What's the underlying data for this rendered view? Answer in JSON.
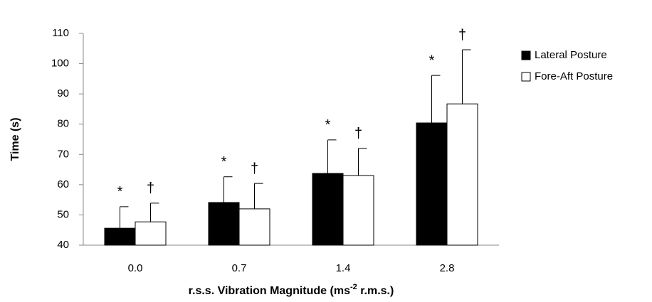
{
  "chart_data": {
    "type": "bar",
    "y_label": "Time (s)",
    "x_label": [
      "r.s.s. Vibration Magnitude (ms",
      "-2",
      " r.m.s.)"
    ],
    "categories": [
      "0.0",
      "0.7",
      "1.4",
      "2.8"
    ],
    "series": [
      {
        "name": "Lateral Posture",
        "color": "#000000",
        "values": [
          45.6,
          54.1,
          63.7,
          80.4
        ],
        "errors": [
          7.1,
          8.5,
          11.1,
          15.7
        ],
        "annotations": [
          "*",
          "*",
          "*",
          "*"
        ]
      },
      {
        "name": "Fore-Aft Posture",
        "color": "#ffffff",
        "values": [
          47.7,
          52,
          63,
          86.7
        ],
        "errors": [
          6.2,
          8.4,
          9,
          17.9
        ],
        "annotations": [
          "†",
          "†",
          "†",
          "†"
        ]
      }
    ],
    "ylim": [
      40,
      110
    ],
    "yticks": [
      40,
      50,
      60,
      70,
      80,
      90,
      100,
      110
    ],
    "grid": false,
    "legend": "right"
  }
}
